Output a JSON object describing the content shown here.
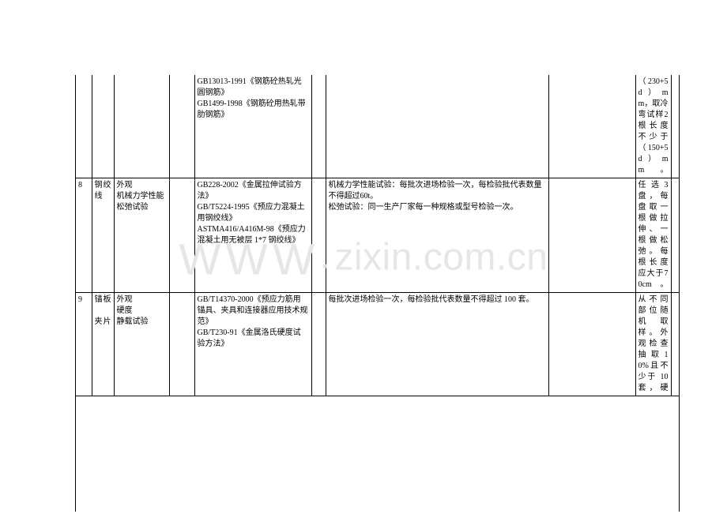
{
  "watermark": "WWW.zixin.com.cn",
  "rows": [
    {
      "c0": "",
      "c1": "",
      "c2": "",
      "c3": "",
      "c4": "GB13013-1991《钢筋砼热轧光圆钢筋》\nGB1499-1998《钢筋砼用热轧带肋钢筋》",
      "c5": "",
      "c6": "",
      "c7": "",
      "c8": "（230+5d）mm，取冷弯试样2根长度不少于（150+5d）mm。",
      "c9": ""
    },
    {
      "c0": "8",
      "c1": "钢绞线",
      "c2": "外观\n机械力学性能\n松弛试验",
      "c3": "",
      "c4": "GB228-2002《金属拉伸试验方法》\nGB/T5224-1995《预应力混凝土用钢绞线》\nASTMA416/A416M-98《预应力混凝土用无被层 1*7 钢绞线》",
      "c5": "",
      "c6": "机械力学性能试验：每批次进场检验一次，每检验批代表数量不得超过60t。\n松弛试验：同一生产厂家每一种规格或型号检验一次。",
      "c7": "",
      "c8": "任选3盘，每盘取一根做拉伸、一根做松弛。每根长度应大于70cm。",
      "c9": ""
    },
    {
      "c0": "9",
      "c1": "锚板\n\n夹片",
      "c2": "外观\n硬度\n静载试验",
      "c3": "",
      "c4": "GB/T14370-2000《预应力筋用锚具、夹具和连接器应用技术规范》\nGB/T230-91《金属洛氏硬度试验方法》",
      "c5": "",
      "c6": "每批次进场检验一次，每检验批代表数量不得超过 100 套。",
      "c7": "",
      "c8": "从不同部位随机取样。外观检查抽取10%且不少于 10 套，硬",
      "c9": ""
    }
  ]
}
